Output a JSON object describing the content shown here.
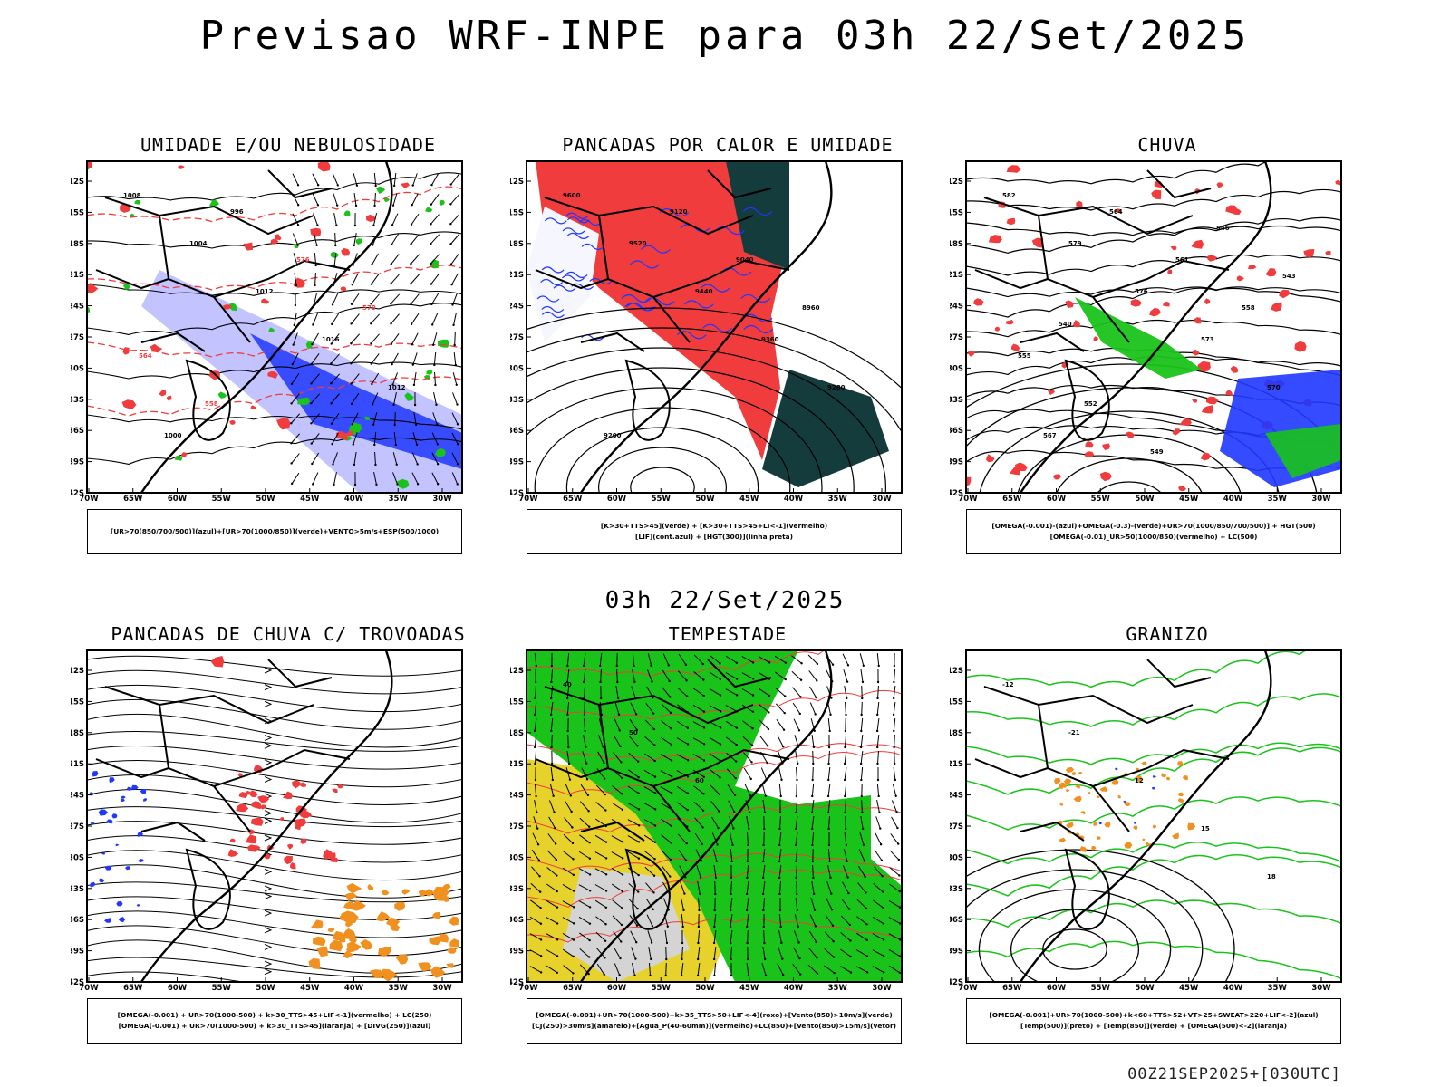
{
  "title": "Previsao WRF-INPE  para 03h 22/Set/2025",
  "mid_date": "03h 22/Set/2025",
  "footer": "00Z21SEP2025+[030UTC]",
  "axes": {
    "lat_labels": [
      "12S",
      "15S",
      "18S",
      "21S",
      "24S",
      "27S",
      "30S",
      "33S",
      "36S",
      "39S",
      "42S"
    ],
    "lon_labels": [
      "70W",
      "65W",
      "60W",
      "55W",
      "50W",
      "45W",
      "40W",
      "35W",
      "30W"
    ]
  },
  "panels": [
    {
      "title": "UMIDADE E/OU NEBULOSIDADE",
      "caption": [
        "[UR>70(850/700/500)](azul)+[UR>70(1000/850)](verde)+VENTO>5m/s+ESP(500/1000)"
      ],
      "contour_labels": [
        "1008",
        "1004",
        "1012",
        "1016",
        "1012",
        "1000",
        "996",
        "576",
        "570",
        "564",
        "558"
      ]
    },
    {
      "title": "PANCADAS POR CALOR E UMIDADE",
      "caption": [
        "[K>30+TTS>45](verde) + [K>30+TTS>45+LI<-1](vermelho)",
        "[LIF](cont.azul) + [HGT(300)](linha preta)"
      ],
      "contour_labels": [
        "9600",
        "9520",
        "9440",
        "9360",
        "9280",
        "9200",
        "9120",
        "9040",
        "8960"
      ]
    },
    {
      "title": "CHUVA",
      "caption": [
        "[OMEGA(-0.001)-(azul)+OMEGA(-0.3)-(verde)+UR>70(1000/850/700/500)] + HGT(500)",
        "[OMEGA(-0.01)_UR>50(1000/850)(vermelho) + LC(500)"
      ],
      "contour_labels": [
        "582",
        "579",
        "576",
        "573",
        "570",
        "567",
        "564",
        "561",
        "558",
        "555",
        "552",
        "549",
        "546",
        "543",
        "540"
      ]
    },
    {
      "title": "PANCADAS DE CHUVA C/ TROVOADAS",
      "caption": [
        "[OMEGA(-0.001) + UR>70(1000-500) + k>30_TTS>45+LIF<-1](vermelho) + LC(250)",
        "[OMEGA(-0.001) + UR>70(1000-500) + k>30_TTS>45](laranja) + [DIVG(250)](azul)"
      ],
      "contour_labels": []
    },
    {
      "title": "TEMPESTADE",
      "caption": [
        "[OMEGA(-0.001)+UR>70(1000-500)+k>35_TTS>50+LIF<-4](roxo)+[Vento(850)>10m/s](verde)",
        "[CJ(250)>30m/s](amarelo)+[Agua_P(40-60mm)](vermelho)+LC(850)+[Vento(850)>15m/s](vetor)"
      ],
      "contour_labels": [
        "40",
        "50",
        "60"
      ]
    },
    {
      "title": "GRANIZO",
      "caption": [
        "[OMEGA(-0.001)+UR>70(1000-500)+k<60+TTS>52+VT>25+SWEAT>220+LIF<-2](azul)",
        "[Temp(500)](preto) + [Temp(850)](verde) + [OMEGA(500)<-2](laranja)"
      ],
      "contour_labels": [
        "-12",
        "-21",
        "12",
        "15",
        "18"
      ]
    }
  ],
  "colors": {
    "red": "#f03c3c",
    "green": "#19c319",
    "blue": "#1f37ff",
    "lightblue": "#b4b4ff",
    "darkgreen": "#143c3c",
    "orange": "#f0901e",
    "yellow": "#e6d22a",
    "gray": "#d4d4d4"
  }
}
